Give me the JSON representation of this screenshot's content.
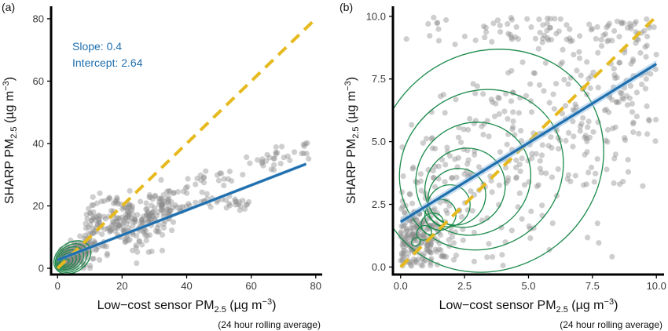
{
  "colors": {
    "points": "#8a8a8a",
    "regression": "#1f6fae",
    "regression_band": "#9ec3e0",
    "identity": "#e6b91e",
    "density": "#1a8a4a",
    "axis": "#000000"
  },
  "chart_data": [
    {
      "type": "scatter",
      "panel": "(a)",
      "xlabel": "Low−cost sensor PM",
      "xlabel_sub": "2.5",
      "xlabel_unit": " (µg m",
      "xlabel_exp": "−3",
      "xlabel_close": ")",
      "ylabel": "SHARP PM",
      "ylabel_sub": "2.5",
      "ylabel_unit": " (µg m",
      "ylabel_exp": "−3",
      "ylabel_close": ")",
      "note": "(24 hour rolling average)",
      "xlim": [
        -2,
        82
      ],
      "ylim": [
        -2,
        84
      ],
      "xticks": [
        0,
        20,
        40,
        60,
        80
      ],
      "yticks": [
        0,
        20,
        40,
        60,
        80
      ],
      "annotations": [
        "Slope: 0.4",
        "Intercept: 2.64"
      ],
      "regression": {
        "slope": 0.4,
        "intercept": 2.64,
        "x_range": [
          0,
          77
        ]
      },
      "identity_line": {
        "x_range": [
          0,
          80
        ]
      },
      "density_center": [
        2.5,
        2.0
      ],
      "grid": false
    },
    {
      "type": "scatter",
      "panel": "(b)",
      "xlabel": "Low−cost sensor PM",
      "xlabel_sub": "2.5",
      "xlabel_unit": " (µg m",
      "xlabel_exp": "−3",
      "xlabel_close": ")",
      "ylabel": "SHARP PM",
      "ylabel_sub": "2.5",
      "ylabel_unit": " (µg m",
      "ylabel_exp": "−3",
      "ylabel_close": ")",
      "note": "(24 hour rolling average)",
      "xlim": [
        -0.3,
        10.3
      ],
      "ylim": [
        -0.3,
        10.4
      ],
      "xticks": [
        0.0,
        2.5,
        5.0,
        7.5,
        10.0
      ],
      "xticklabels": [
        "0.0",
        "2.5",
        "5.0",
        "7.5",
        "10.0"
      ],
      "yticks": [
        0.0,
        2.5,
        5.0,
        7.5,
        10.0
      ],
      "yticklabels": [
        "0.0",
        "2.5",
        "5.0",
        "7.5",
        "10.0"
      ],
      "regression": {
        "slope": 0.63,
        "intercept": 1.8,
        "x_range": [
          0,
          10
        ]
      },
      "identity_line": {
        "x_range": [
          0,
          10
        ]
      },
      "density_center": [
        0.6,
        1.0
      ],
      "grid": false
    }
  ]
}
